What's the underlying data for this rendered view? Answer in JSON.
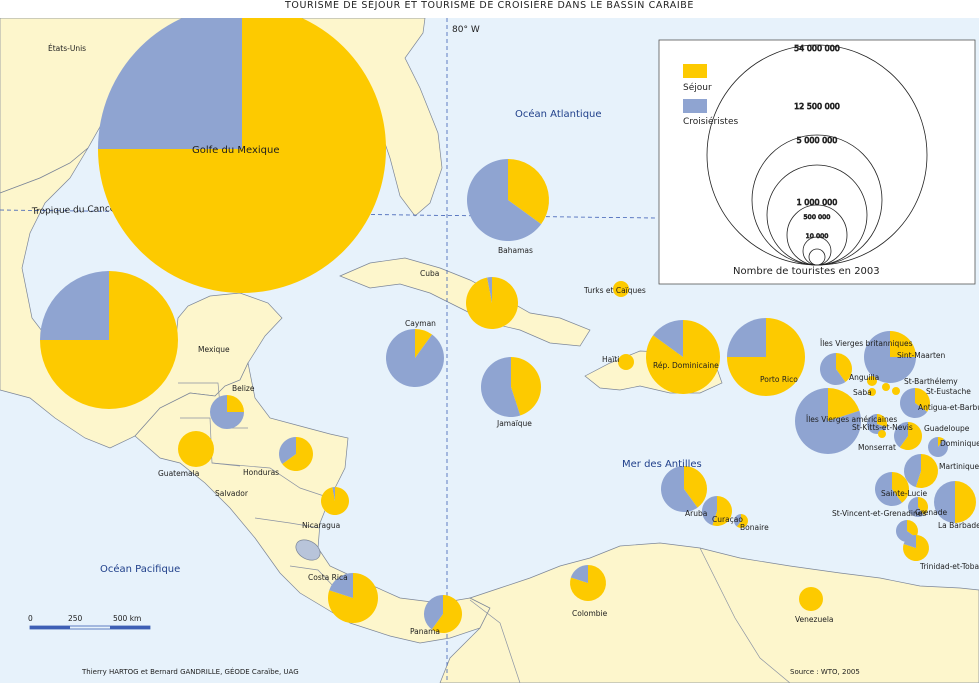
{
  "title": "TOURISME DE SÉJOUR ET TOURISME DE CROISIÈRE DANS LE BASSIN CARAÏBE",
  "colors": {
    "sejour": "#fdca00",
    "croisieristes": "#8fa4d1",
    "sea": "#e7f2fb",
    "land": "#fdf6cc",
    "border": "#8b93a3"
  },
  "legend": {
    "sejour_label": "Séjour",
    "croisieristes_label": "Croisiéristes",
    "caption": "Nombre de touristes en 2003",
    "scale_values": [
      "54 000 000",
      "12 500 000",
      "5 000 000",
      "1 000 000",
      "500 000",
      "10 000"
    ]
  },
  "meridian_label": "80° W",
  "tropic_label": "Tropique du Cancer",
  "scale_bar": {
    "labels": [
      "0",
      "250",
      "500 km"
    ]
  },
  "credit": "Thierry HARTOG et Bernard GANDRILLE, GÉODE Caraïbe, UAG",
  "source": "Source : WTO, 2005",
  "place_labels": {
    "etats_unis": "États-Unis",
    "golfe": "Golfe du Mexique",
    "ocean_atlantique": "Océan Atlantique",
    "mexique": "Mexique",
    "cuba": "Cuba",
    "bahamas": "Bahamas",
    "turks": "Turks et Caïques",
    "cayman": "Cayman",
    "jamaique": "Jamaïque",
    "haiti": "Haïti",
    "rep_dom": "Rép. Dominicaine",
    "porto_rico": "Porto Rico",
    "iles_vierges_brit": "Îles Vierges britanniques",
    "iles_vierges_am": "Îles Vierges américaines",
    "sint_maarten": "Sint-Maarten",
    "anguilla": "Anguilla",
    "st_barthelemy": "St-Barthélemy",
    "st_eustache": "St-Eustache",
    "saba": "Saba",
    "antigua": "Antigua-et-Barbuda",
    "st_kitts": "St-Kitts-et-Nevis",
    "guadeloupe": "Guadeloupe",
    "monserrat": "Monserrat",
    "dominique": "Dominique",
    "martinique": "Martinique",
    "sainte_lucie": "Sainte-Lucie",
    "st_vincent": "St-Vincent-et-Grenadines",
    "la_barbade": "La Barbade",
    "grenade": "Grenade",
    "trinidad": "Trinidad-et-Tobago",
    "belize": "Belize",
    "guatemala": "Guatemala",
    "honduras": "Honduras",
    "salvador": "Salvador",
    "nicaragua": "Nicaragua",
    "costa_rica": "Costa Rica",
    "panama": "Panama",
    "colombie": "Colombie",
    "venezuela": "Venezuela",
    "aruba": "Aruba",
    "curacao": "Curaçao",
    "bonaire": "Bonaire",
    "mer_antilles": "Mer des Antilles",
    "ocean_pacifique": "Océan Pacifique"
  },
  "pies": [
    {
      "name": "Golfe du Mexique (États-Unis)",
      "sejour": 0.75
    },
    {
      "name": "Mexique",
      "sejour": 0.75
    },
    {
      "name": "Bahamas",
      "sejour": 0.35
    },
    {
      "name": "Cuba",
      "sejour": 0.97
    },
    {
      "name": "Turks et Caïques",
      "sejour": 1.0
    },
    {
      "name": "Cayman",
      "sejour": 0.1
    },
    {
      "name": "Jamaïque",
      "sejour": 0.45
    },
    {
      "name": "Haïti",
      "sejour": 1.0
    },
    {
      "name": "Rép. Dominicaine",
      "sejour": 0.85
    },
    {
      "name": "Porto Rico",
      "sejour": 0.75
    },
    {
      "name": "Îles Vierges britanniques",
      "sejour": 0.4
    },
    {
      "name": "Sint-Maarten",
      "sejour": 0.25
    },
    {
      "name": "Anguilla",
      "sejour": 1.0
    },
    {
      "name": "St-Barthélemy",
      "sejour": 1.0
    },
    {
      "name": "Saba",
      "sejour": 1.0
    },
    {
      "name": "St-Eustache",
      "sejour": 1.0
    },
    {
      "name": "Îles Vierges américaines",
      "sejour": 0.2
    },
    {
      "name": "Antigua-et-Barbuda",
      "sejour": 0.35
    },
    {
      "name": "St-Kitts-et-Nevis",
      "sejour": 0.3
    },
    {
      "name": "Monserrat",
      "sejour": 1.0
    },
    {
      "name": "Guadeloupe",
      "sejour": 0.6
    },
    {
      "name": "Dominique",
      "sejour": 0.1
    },
    {
      "name": "Martinique",
      "sejour": 0.55
    },
    {
      "name": "Sainte-Lucie",
      "sejour": 0.4
    },
    {
      "name": "St-Vincent-et-Grenadines",
      "sejour": 0.4
    },
    {
      "name": "La Barbade",
      "sejour": 0.5
    },
    {
      "name": "Grenade",
      "sejour": 0.35
    },
    {
      "name": "Trinidad-et-Tobago",
      "sejour": 0.8
    },
    {
      "name": "Belize",
      "sejour": 0.25
    },
    {
      "name": "Guatemala",
      "sejour": 1.0
    },
    {
      "name": "Honduras",
      "sejour": 0.65
    },
    {
      "name": "Nicaragua",
      "sejour": 0.97
    },
    {
      "name": "Costa Rica",
      "sejour": 0.8
    },
    {
      "name": "Panama",
      "sejour": 0.6
    },
    {
      "name": "Colombie",
      "sejour": 0.8
    },
    {
      "name": "Venezuela",
      "sejour": 1.0
    },
    {
      "name": "Aruba",
      "sejour": 0.4
    },
    {
      "name": "Curaçao",
      "sejour": 0.55
    },
    {
      "name": "Bonaire",
      "sejour": 0.6
    }
  ]
}
